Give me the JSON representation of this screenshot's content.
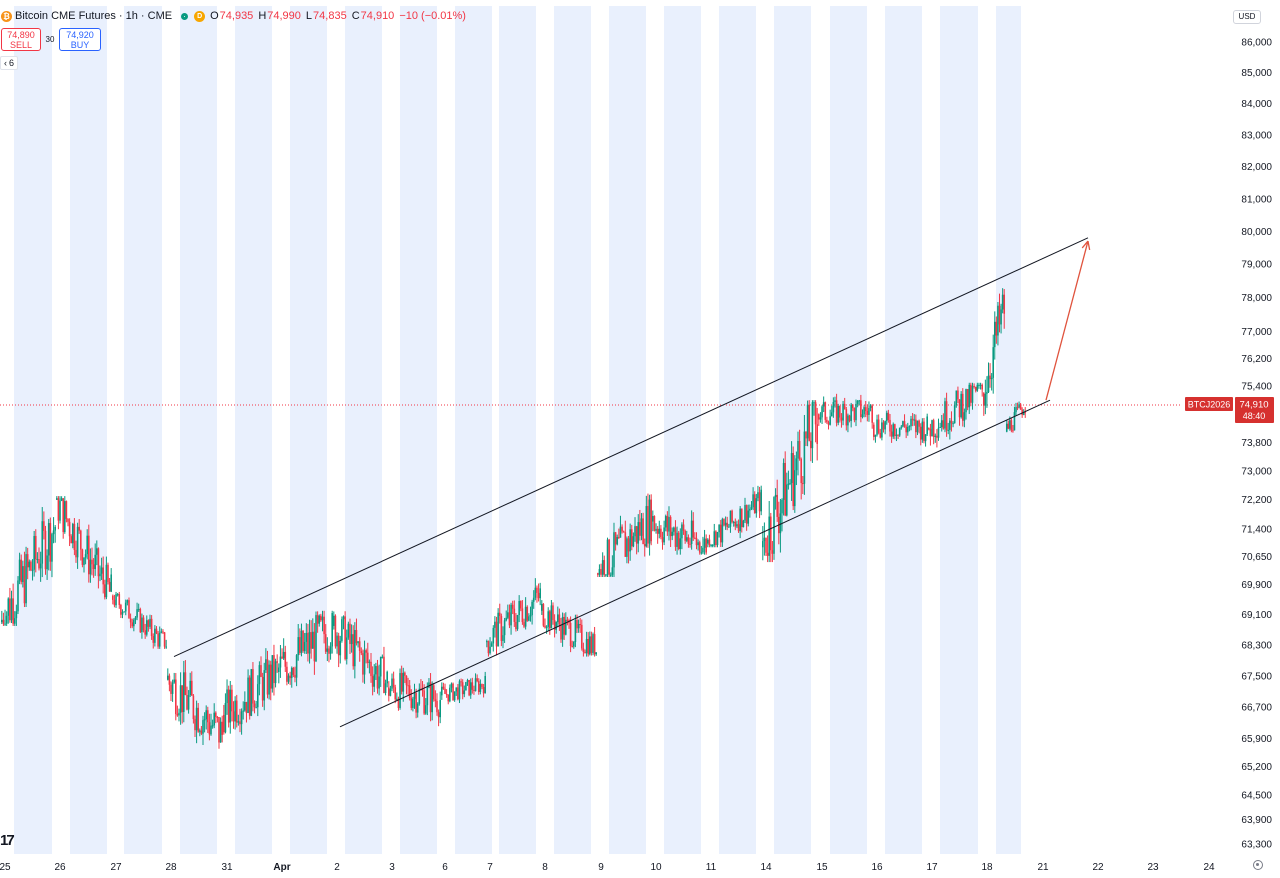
{
  "header": {
    "symbol_icon": "bitcoin-icon",
    "title": "Bitcoin CME Futures · 1h · CME",
    "d_badge": "D",
    "ohlc": {
      "o_label": "O",
      "o": "74,935",
      "h_label": "H",
      "h": "74,990",
      "l_label": "L",
      "l": "74,835",
      "c_label": "C",
      "c": "74,910",
      "change": "−10 (−0.01%)"
    }
  },
  "trade": {
    "sell_price": "74,890",
    "sell_label": "SELL",
    "spread": "30",
    "buy_price": "74,920",
    "buy_label": "BUY"
  },
  "indicator_toggle": "6",
  "currency": "USD",
  "colors": {
    "up": "#089981",
    "down": "#f23645",
    "session": "#e9f0fd",
    "drawing": "#131722",
    "arrow": "#e0533d",
    "price_marker": "#d6312f"
  },
  "chart_data": {
    "type": "candlestick",
    "title": "Bitcoin CME Futures · 1h · CME",
    "symbol": "BTCJ2026",
    "timeframe": "1h",
    "y_axis": {
      "side": "right",
      "tick_labels": [
        "86,000",
        "85,000",
        "84,000",
        "83,000",
        "82,000",
        "81,000",
        "80,000",
        "79,000",
        "78,000",
        "77,000",
        "76,200",
        "75,400",
        "73,800",
        "73,000",
        "72,200",
        "71,400",
        "70,650",
        "69,900",
        "69,100",
        "68,300",
        "67,500",
        "66,700",
        "65,900",
        "65,200",
        "64,500",
        "63,900",
        "63,300"
      ],
      "scale": "log"
    },
    "x_axis": {
      "tick_labels": [
        "25",
        "26",
        "27",
        "28",
        "31",
        "Apr",
        "2",
        "3",
        "6",
        "7",
        "8",
        "9",
        "10",
        "11",
        "14",
        "15",
        "16",
        "17",
        "18",
        "21",
        "22",
        "23",
        "24"
      ]
    },
    "last_price": {
      "label": "BTCJ2026",
      "value": "74,910",
      "countdown": "48:40"
    },
    "sessions": [
      {
        "day": "25",
        "open": 68900,
        "close": 71500,
        "low": 68800,
        "high": 72300
      },
      {
        "day": "26",
        "open": 72200,
        "close": 69600,
        "low": 69500,
        "high": 72300
      },
      {
        "day": "27",
        "open": 69600,
        "close": 68300,
        "low": 68200,
        "high": 69700
      },
      {
        "day": "28",
        "open": 67400,
        "close": 66000,
        "low": 65100,
        "high": 68000
      },
      {
        "day": "31",
        "open": 66500,
        "close": 67600,
        "low": 66000,
        "high": 68700
      },
      {
        "day": "Apr",
        "open": 67600,
        "close": 68800,
        "low": 66200,
        "high": 69200
      },
      {
        "day": "2",
        "open": 68800,
        "close": 67300,
        "low": 67000,
        "high": 69700
      },
      {
        "day": "3",
        "open": 67200,
        "close": 66900,
        "low": 66000,
        "high": 68200
      },
      {
        "day": "6",
        "open": 67000,
        "close": 67300,
        "low": 66700,
        "high": 67800
      },
      {
        "day": "7",
        "open": 68400,
        "close": 69600,
        "low": 68000,
        "high": 70200
      },
      {
        "day": "8",
        "open": 69200,
        "close": 68200,
        "low": 68000,
        "high": 69800
      },
      {
        "day": "9",
        "open": 70200,
        "close": 71700,
        "low": 70100,
        "high": 73000
      },
      {
        "day": "10",
        "open": 71600,
        "close": 70900,
        "low": 70700,
        "high": 73200
      },
      {
        "day": "11",
        "open": 71000,
        "close": 72200,
        "low": 70900,
        "high": 72600
      },
      {
        "day": "14",
        "open": 70900,
        "close": 74500,
        "low": 70500,
        "high": 75000
      },
      {
        "day": "15",
        "open": 74600,
        "close": 74700,
        "low": 73900,
        "high": 75600
      },
      {
        "day": "16",
        "open": 74300,
        "close": 74200,
        "low": 73300,
        "high": 75000
      },
      {
        "day": "17",
        "open": 74200,
        "close": 75300,
        "low": 73200,
        "high": 75500
      },
      {
        "day": "18",
        "open": 75200,
        "close": 77700,
        "low": 74500,
        "high": 78400
      },
      {
        "day": "18b",
        "open": 74100,
        "close": 74910,
        "low": 73700,
        "high": 75000
      }
    ],
    "drawings": [
      {
        "type": "trendline",
        "name": "channel-upper",
        "points": [
          {
            "t": "28",
            "v": 68000
          },
          {
            "t": "21",
            "v": 79800
          }
        ]
      },
      {
        "type": "trendline",
        "name": "channel-lower",
        "points": [
          {
            "t": "2",
            "v": 66200
          },
          {
            "t": "21",
            "v": 75000
          }
        ]
      },
      {
        "type": "arrow",
        "name": "target-arrow",
        "points": [
          {
            "t": "21",
            "v": 75000
          },
          {
            "t": "22",
            "v": 79700
          }
        ]
      }
    ]
  }
}
